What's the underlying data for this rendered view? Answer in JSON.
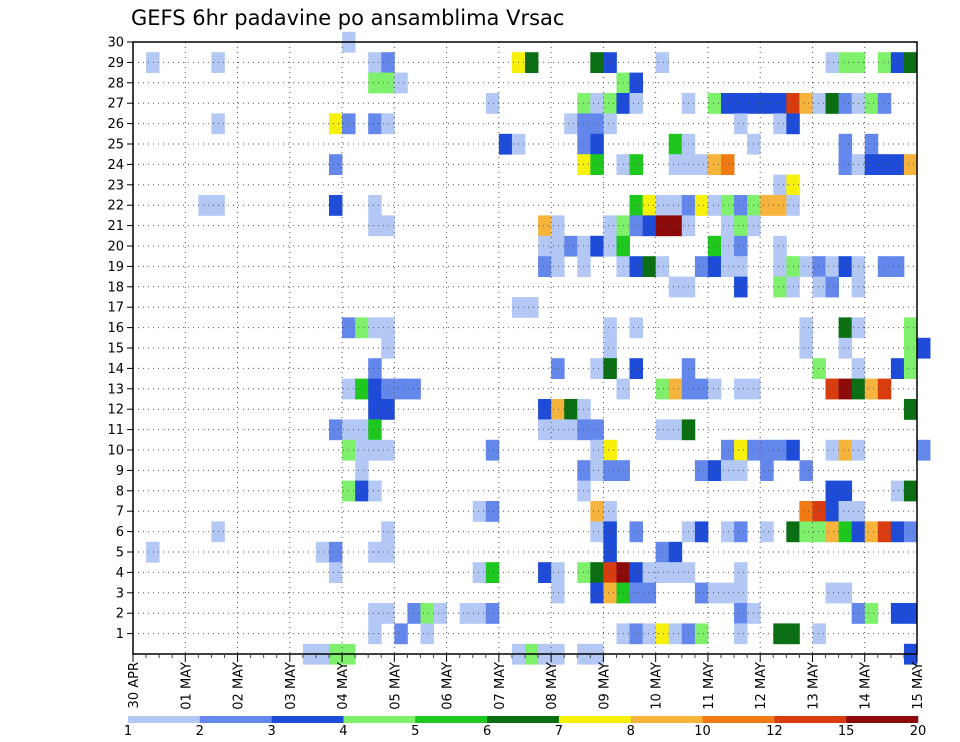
{
  "chart_data": {
    "type": "heatmap",
    "title": "GEFS 6hr padavine po ansamblima Vrsac",
    "xlabel": "",
    "ylabel": "",
    "x_tick_labels": [
      "30 APR",
      "01 MAY",
      "02 MAY",
      "03 MAY",
      "04 MAY",
      "05 MAY",
      "06 MAY",
      "07 MAY",
      "08 MAY",
      "09 MAY",
      "10 MAY",
      "11 MAY",
      "12 MAY",
      "13 MAY",
      "14 MAY",
      "15 MAY"
    ],
    "y_tick_labels": [
      "1",
      "2",
      "3",
      "4",
      "5",
      "6",
      "7",
      "8",
      "9",
      "10",
      "11",
      "12",
      "13",
      "14",
      "15",
      "16",
      "17",
      "18",
      "19",
      "20",
      "21",
      "22",
      "23",
      "24",
      "25",
      "26",
      "27",
      "28",
      "29",
      "30"
    ],
    "y_range": [
      0,
      30
    ],
    "x_range_steps": [
      0,
      60
    ],
    "steps_per_day": 4,
    "grid": true,
    "colorbar": {
      "labels": [
        "1",
        "2",
        "3",
        "4",
        "5",
        "6",
        "7",
        "8",
        "10",
        "12",
        "15",
        "20"
      ],
      "colors": [
        "#b3c8f5",
        "#6487ec",
        "#1e4cd8",
        "#7ef06b",
        "#1ec81e",
        "#0a6e12",
        "#f7f00a",
        "#f7b43c",
        "#f07b14",
        "#d83c0f",
        "#8c0a0a"
      ]
    },
    "cells": [
      [
        30,
        16,
        1
      ],
      [
        29,
        1,
        1
      ],
      [
        29,
        6,
        1
      ],
      [
        29,
        18,
        1
      ],
      [
        29,
        19,
        2
      ],
      [
        29,
        29,
        7
      ],
      [
        29,
        30,
        6
      ],
      [
        29,
        35,
        6
      ],
      [
        29,
        36,
        3
      ],
      [
        29,
        40,
        1
      ],
      [
        29,
        53,
        1
      ],
      [
        29,
        54,
        4
      ],
      [
        29,
        55,
        4
      ],
      [
        29,
        57,
        4
      ],
      [
        29,
        58,
        3
      ],
      [
        29,
        59,
        6
      ],
      [
        28,
        18,
        4
      ],
      [
        28,
        19,
        4
      ],
      [
        28,
        20,
        1
      ],
      [
        28,
        37,
        4
      ],
      [
        28,
        38,
        3
      ],
      [
        27,
        27,
        1
      ],
      [
        27,
        34,
        4
      ],
      [
        27,
        35,
        1
      ],
      [
        27,
        36,
        4
      ],
      [
        27,
        37,
        3
      ],
      [
        27,
        38,
        1
      ],
      [
        27,
        42,
        1
      ],
      [
        27,
        44,
        4
      ],
      [
        27,
        45,
        3
      ],
      [
        27,
        46,
        3
      ],
      [
        27,
        47,
        3
      ],
      [
        27,
        48,
        3
      ],
      [
        27,
        49,
        3
      ],
      [
        27,
        50,
        10
      ],
      [
        27,
        51,
        8
      ],
      [
        27,
        52,
        1
      ],
      [
        27,
        53,
        6
      ],
      [
        27,
        54,
        2
      ],
      [
        27,
        55,
        1
      ],
      [
        27,
        56,
        4
      ],
      [
        27,
        57,
        2
      ],
      [
        26,
        6,
        1
      ],
      [
        26,
        15,
        7
      ],
      [
        26,
        16,
        2
      ],
      [
        26,
        18,
        2
      ],
      [
        26,
        19,
        1
      ],
      [
        26,
        33,
        1
      ],
      [
        26,
        34,
        2
      ],
      [
        26,
        35,
        2
      ],
      [
        26,
        36,
        1
      ],
      [
        26,
        46,
        1
      ],
      [
        26,
        49,
        1
      ],
      [
        26,
        50,
        3
      ],
      [
        25,
        28,
        3
      ],
      [
        25,
        29,
        1
      ],
      [
        25,
        34,
        2
      ],
      [
        25,
        35,
        3
      ],
      [
        25,
        41,
        5
      ],
      [
        25,
        42,
        1
      ],
      [
        25,
        47,
        1
      ],
      [
        25,
        54,
        2
      ],
      [
        25,
        56,
        2
      ],
      [
        24,
        15,
        2
      ],
      [
        24,
        34,
        7
      ],
      [
        24,
        35,
        5
      ],
      [
        24,
        37,
        1
      ],
      [
        24,
        38,
        5
      ],
      [
        24,
        41,
        1
      ],
      [
        24,
        42,
        1
      ],
      [
        24,
        43,
        1
      ],
      [
        24,
        44,
        8
      ],
      [
        24,
        45,
        9
      ],
      [
        24,
        54,
        2
      ],
      [
        24,
        55,
        1
      ],
      [
        24,
        56,
        3
      ],
      [
        24,
        57,
        3
      ],
      [
        24,
        58,
        3
      ],
      [
        24,
        59,
        8
      ],
      [
        23,
        49,
        1
      ],
      [
        23,
        50,
        7
      ],
      [
        22,
        5,
        1
      ],
      [
        22,
        6,
        1
      ],
      [
        22,
        15,
        3
      ],
      [
        22,
        18,
        1
      ],
      [
        22,
        38,
        5
      ],
      [
        22,
        39,
        7
      ],
      [
        22,
        40,
        1
      ],
      [
        22,
        41,
        1
      ],
      [
        22,
        42,
        2
      ],
      [
        22,
        43,
        7
      ],
      [
        22,
        44,
        1
      ],
      [
        22,
        45,
        4
      ],
      [
        22,
        46,
        2
      ],
      [
        22,
        47,
        4
      ],
      [
        22,
        48,
        8
      ],
      [
        22,
        49,
        8
      ],
      [
        22,
        50,
        1
      ],
      [
        21,
        18,
        1
      ],
      [
        21,
        19,
        1
      ],
      [
        21,
        31,
        8
      ],
      [
        21,
        32,
        1
      ],
      [
        21,
        36,
        1
      ],
      [
        21,
        37,
        4
      ],
      [
        21,
        38,
        2
      ],
      [
        21,
        39,
        3
      ],
      [
        21,
        40,
        11
      ],
      [
        21,
        41,
        11
      ],
      [
        21,
        42,
        1
      ],
      [
        21,
        45,
        1
      ],
      [
        21,
        46,
        4
      ],
      [
        21,
        47,
        1
      ],
      [
        20,
        31,
        1
      ],
      [
        20,
        32,
        1
      ],
      [
        20,
        33,
        2
      ],
      [
        20,
        34,
        1
      ],
      [
        20,
        35,
        3
      ],
      [
        20,
        36,
        1
      ],
      [
        20,
        37,
        5
      ],
      [
        20,
        44,
        5
      ],
      [
        20,
        45,
        1
      ],
      [
        20,
        46,
        2
      ],
      [
        20,
        49,
        1
      ],
      [
        19,
        31,
        2
      ],
      [
        19,
        32,
        1
      ],
      [
        19,
        34,
        1
      ],
      [
        19,
        37,
        1
      ],
      [
        19,
        38,
        3
      ],
      [
        19,
        39,
        6
      ],
      [
        19,
        40,
        1
      ],
      [
        19,
        43,
        2
      ],
      [
        19,
        44,
        3
      ],
      [
        19,
        45,
        1
      ],
      [
        19,
        46,
        1
      ],
      [
        19,
        49,
        1
      ],
      [
        19,
        50,
        4
      ],
      [
        19,
        51,
        1
      ],
      [
        19,
        52,
        2
      ],
      [
        19,
        53,
        1
      ],
      [
        19,
        54,
        3
      ],
      [
        19,
        55,
        1
      ],
      [
        19,
        57,
        2
      ],
      [
        19,
        58,
        2
      ],
      [
        18,
        41,
        1
      ],
      [
        18,
        42,
        1
      ],
      [
        18,
        46,
        3
      ],
      [
        18,
        49,
        4
      ],
      [
        18,
        50,
        1
      ],
      [
        18,
        52,
        1
      ],
      [
        18,
        53,
        2
      ],
      [
        18,
        55,
        1
      ],
      [
        17,
        29,
        1
      ],
      [
        17,
        30,
        1
      ],
      [
        16,
        16,
        2
      ],
      [
        16,
        17,
        4
      ],
      [
        16,
        18,
        1
      ],
      [
        16,
        19,
        1
      ],
      [
        16,
        36,
        1
      ],
      [
        16,
        38,
        1
      ],
      [
        16,
        51,
        1
      ],
      [
        16,
        54,
        6
      ],
      [
        16,
        55,
        1
      ],
      [
        16,
        59,
        4
      ],
      [
        15,
        19,
        1
      ],
      [
        15,
        36,
        1
      ],
      [
        15,
        51,
        1
      ],
      [
        15,
        54,
        1
      ],
      [
        15,
        59,
        4
      ],
      [
        15,
        60,
        3
      ],
      [
        14,
        18,
        2
      ],
      [
        14,
        32,
        2
      ],
      [
        14,
        35,
        1
      ],
      [
        14,
        36,
        6
      ],
      [
        14,
        38,
        3
      ],
      [
        14,
        42,
        2
      ],
      [
        14,
        52,
        4
      ],
      [
        14,
        55,
        1
      ],
      [
        14,
        58,
        3
      ],
      [
        14,
        59,
        4
      ],
      [
        13,
        16,
        1
      ],
      [
        13,
        17,
        5
      ],
      [
        13,
        18,
        3
      ],
      [
        13,
        19,
        2
      ],
      [
        13,
        20,
        2
      ],
      [
        13,
        21,
        2
      ],
      [
        13,
        37,
        1
      ],
      [
        13,
        40,
        4
      ],
      [
        13,
        41,
        8
      ],
      [
        13,
        42,
        2
      ],
      [
        13,
        43,
        2
      ],
      [
        13,
        44,
        1
      ],
      [
        13,
        46,
        1
      ],
      [
        13,
        47,
        1
      ],
      [
        13,
        53,
        10
      ],
      [
        13,
        54,
        11
      ],
      [
        13,
        55,
        6
      ],
      [
        13,
        56,
        8
      ],
      [
        13,
        57,
        10
      ],
      [
        12,
        18,
        3
      ],
      [
        12,
        19,
        3
      ],
      [
        12,
        31,
        3
      ],
      [
        12,
        32,
        8
      ],
      [
        12,
        33,
        6
      ],
      [
        12,
        34,
        1
      ],
      [
        12,
        59,
        6
      ],
      [
        11,
        15,
        2
      ],
      [
        11,
        16,
        1
      ],
      [
        11,
        17,
        1
      ],
      [
        11,
        18,
        5
      ],
      [
        11,
        31,
        1
      ],
      [
        11,
        32,
        1
      ],
      [
        11,
        33,
        1
      ],
      [
        11,
        34,
        2
      ],
      [
        11,
        35,
        2
      ],
      [
        11,
        40,
        1
      ],
      [
        11,
        41,
        1
      ],
      [
        11,
        42,
        6
      ],
      [
        10,
        16,
        4
      ],
      [
        10,
        17,
        1
      ],
      [
        10,
        18,
        1
      ],
      [
        10,
        19,
        1
      ],
      [
        10,
        27,
        2
      ],
      [
        10,
        35,
        1
      ],
      [
        10,
        36,
        7
      ],
      [
        10,
        45,
        2
      ],
      [
        10,
        46,
        7
      ],
      [
        10,
        47,
        2
      ],
      [
        10,
        48,
        2
      ],
      [
        10,
        49,
        2
      ],
      [
        10,
        50,
        3
      ],
      [
        10,
        53,
        1
      ],
      [
        10,
        54,
        8
      ],
      [
        10,
        55,
        1
      ],
      [
        10,
        60,
        2
      ],
      [
        9,
        17,
        1
      ],
      [
        9,
        34,
        2
      ],
      [
        9,
        35,
        1
      ],
      [
        9,
        36,
        2
      ],
      [
        9,
        37,
        2
      ],
      [
        9,
        43,
        2
      ],
      [
        9,
        44,
        3
      ],
      [
        9,
        45,
        1
      ],
      [
        9,
        46,
        1
      ],
      [
        9,
        48,
        2
      ],
      [
        9,
        51,
        2
      ],
      [
        8,
        16,
        4
      ],
      [
        8,
        17,
        3
      ],
      [
        8,
        18,
        1
      ],
      [
        8,
        34,
        1
      ],
      [
        8,
        53,
        3
      ],
      [
        8,
        54,
        3
      ],
      [
        8,
        58,
        1
      ],
      [
        8,
        59,
        6
      ],
      [
        7,
        26,
        1
      ],
      [
        7,
        27,
        2
      ],
      [
        7,
        35,
        8
      ],
      [
        7,
        36,
        1
      ],
      [
        7,
        51,
        9
      ],
      [
        7,
        52,
        10
      ],
      [
        7,
        53,
        3
      ],
      [
        7,
        54,
        1
      ],
      [
        7,
        55,
        1
      ],
      [
        6,
        6,
        1
      ],
      [
        6,
        19,
        1
      ],
      [
        6,
        35,
        1
      ],
      [
        6,
        36,
        3
      ],
      [
        6,
        38,
        2
      ],
      [
        6,
        42,
        1
      ],
      [
        6,
        43,
        3
      ],
      [
        6,
        45,
        1
      ],
      [
        6,
        46,
        2
      ],
      [
        6,
        48,
        1
      ],
      [
        6,
        50,
        6
      ],
      [
        6,
        51,
        4
      ],
      [
        6,
        52,
        4
      ],
      [
        6,
        53,
        8
      ],
      [
        6,
        54,
        5
      ],
      [
        6,
        55,
        3
      ],
      [
        6,
        56,
        8
      ],
      [
        6,
        57,
        10
      ],
      [
        6,
        58,
        3
      ],
      [
        6,
        59,
        2
      ],
      [
        5,
        1,
        1
      ],
      [
        5,
        14,
        1
      ],
      [
        5,
        15,
        2
      ],
      [
        5,
        18,
        1
      ],
      [
        5,
        19,
        1
      ],
      [
        5,
        36,
        3
      ],
      [
        5,
        40,
        2
      ],
      [
        5,
        41,
        3
      ],
      [
        4,
        15,
        1
      ],
      [
        4,
        26,
        1
      ],
      [
        4,
        27,
        5
      ],
      [
        4,
        31,
        3
      ],
      [
        4,
        32,
        1
      ],
      [
        4,
        34,
        4
      ],
      [
        4,
        35,
        6
      ],
      [
        4,
        36,
        10
      ],
      [
        4,
        37,
        11
      ],
      [
        4,
        38,
        3
      ],
      [
        4,
        39,
        1
      ],
      [
        4,
        40,
        1
      ],
      [
        4,
        41,
        1
      ],
      [
        4,
        42,
        1
      ],
      [
        4,
        46,
        1
      ],
      [
        3,
        32,
        1
      ],
      [
        3,
        35,
        3
      ],
      [
        3,
        36,
        8
      ],
      [
        3,
        37,
        5
      ],
      [
        3,
        38,
        2
      ],
      [
        3,
        39,
        2
      ],
      [
        3,
        43,
        2
      ],
      [
        3,
        44,
        1
      ],
      [
        3,
        45,
        1
      ],
      [
        3,
        46,
        1
      ],
      [
        3,
        53,
        1
      ],
      [
        3,
        54,
        1
      ],
      [
        2,
        18,
        1
      ],
      [
        2,
        19,
        1
      ],
      [
        2,
        21,
        2
      ],
      [
        2,
        22,
        4
      ],
      [
        2,
        23,
        1
      ],
      [
        2,
        25,
        1
      ],
      [
        2,
        26,
        1
      ],
      [
        2,
        27,
        2
      ],
      [
        2,
        46,
        2
      ],
      [
        2,
        47,
        1
      ],
      [
        2,
        55,
        2
      ],
      [
        2,
        56,
        4
      ],
      [
        2,
        58,
        3
      ],
      [
        2,
        59,
        3
      ],
      [
        1,
        18,
        1
      ],
      [
        1,
        20,
        2
      ],
      [
        1,
        22,
        1
      ],
      [
        1,
        37,
        1
      ],
      [
        1,
        38,
        2
      ],
      [
        1,
        39,
        1
      ],
      [
        1,
        40,
        7
      ],
      [
        1,
        41,
        1
      ],
      [
        1,
        42,
        2
      ],
      [
        1,
        43,
        4
      ],
      [
        1,
        46,
        1
      ],
      [
        1,
        49,
        6
      ],
      [
        1,
        50,
        6
      ],
      [
        1,
        52,
        1
      ],
      [
        0,
        13,
        1
      ],
      [
        0,
        14,
        1
      ],
      [
        0,
        15,
        4
      ],
      [
        0,
        16,
        4
      ],
      [
        0,
        29,
        1
      ],
      [
        0,
        30,
        4
      ],
      [
        0,
        31,
        1
      ],
      [
        0,
        32,
        1
      ],
      [
        0,
        34,
        1
      ],
      [
        0,
        35,
        1
      ],
      [
        0,
        59,
        3
      ]
    ]
  }
}
